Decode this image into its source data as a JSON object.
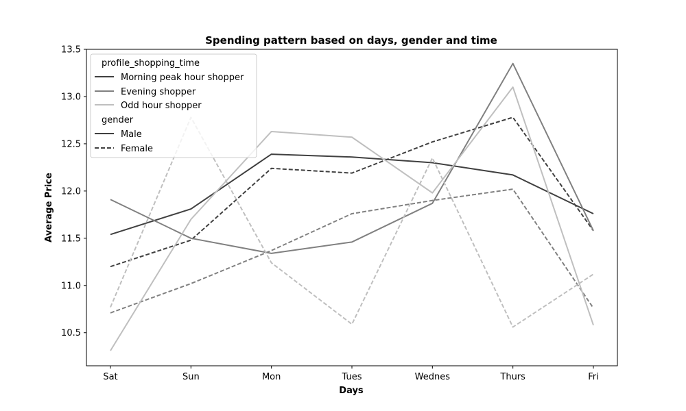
{
  "chart_data": {
    "type": "line",
    "title": "Spending pattern based on days, gender and time",
    "xlabel": "Days",
    "ylabel": "Average Price",
    "categories": [
      "Sat",
      "Sun",
      "Mon",
      "Tues",
      "Wednes",
      "Thurs",
      "Fri"
    ],
    "ylim": [
      10.15,
      13.5
    ],
    "yticks": [
      "10.5",
      "11.0",
      "11.5",
      "12.0",
      "12.5",
      "13.0",
      "13.5"
    ],
    "grid": false,
    "legend_position": "top-left",
    "legend": {
      "hue_title": "profile_shopping_time",
      "hue_entries": [
        {
          "label": "Morning peak hour shopper",
          "color": "#404040"
        },
        {
          "label": "Evening shopper",
          "color": "#808080"
        },
        {
          "label": "Odd hour shopper",
          "color": "#bfbfbf"
        }
      ],
      "style_title": "gender",
      "style_entries": [
        {
          "label": "Male",
          "dash": "solid"
        },
        {
          "label": "Female",
          "dash": "dashed"
        }
      ]
    },
    "series": [
      {
        "time": "Morning peak hour shopper",
        "gender": "Male",
        "color": "#404040",
        "dash": "solid",
        "values": [
          11.54,
          11.81,
          12.39,
          12.36,
          12.3,
          12.17,
          11.76
        ]
      },
      {
        "time": "Morning peak hour shopper",
        "gender": "Female",
        "color": "#404040",
        "dash": "dashed",
        "values": [
          11.2,
          11.48,
          12.24,
          12.19,
          12.52,
          12.78,
          11.58
        ]
      },
      {
        "time": "Evening shopper",
        "gender": "Male",
        "color": "#808080",
        "dash": "solid",
        "values": [
          11.91,
          11.5,
          11.34,
          11.46,
          11.87,
          13.35,
          11.58
        ]
      },
      {
        "time": "Evening shopper",
        "gender": "Female",
        "color": "#808080",
        "dash": "dashed",
        "values": [
          10.71,
          11.02,
          11.37,
          11.76,
          11.9,
          12.02,
          10.76
        ]
      },
      {
        "time": "Odd hour shopper",
        "gender": "Male",
        "color": "#bfbfbf",
        "dash": "solid",
        "values": [
          10.31,
          11.7,
          12.63,
          12.57,
          11.98,
          13.1,
          10.58
        ]
      },
      {
        "time": "Odd hour shopper",
        "gender": "Female",
        "color": "#bfbfbf",
        "dash": "dashed",
        "values": [
          10.77,
          12.78,
          11.24,
          10.59,
          12.35,
          10.56,
          11.12
        ]
      }
    ]
  }
}
